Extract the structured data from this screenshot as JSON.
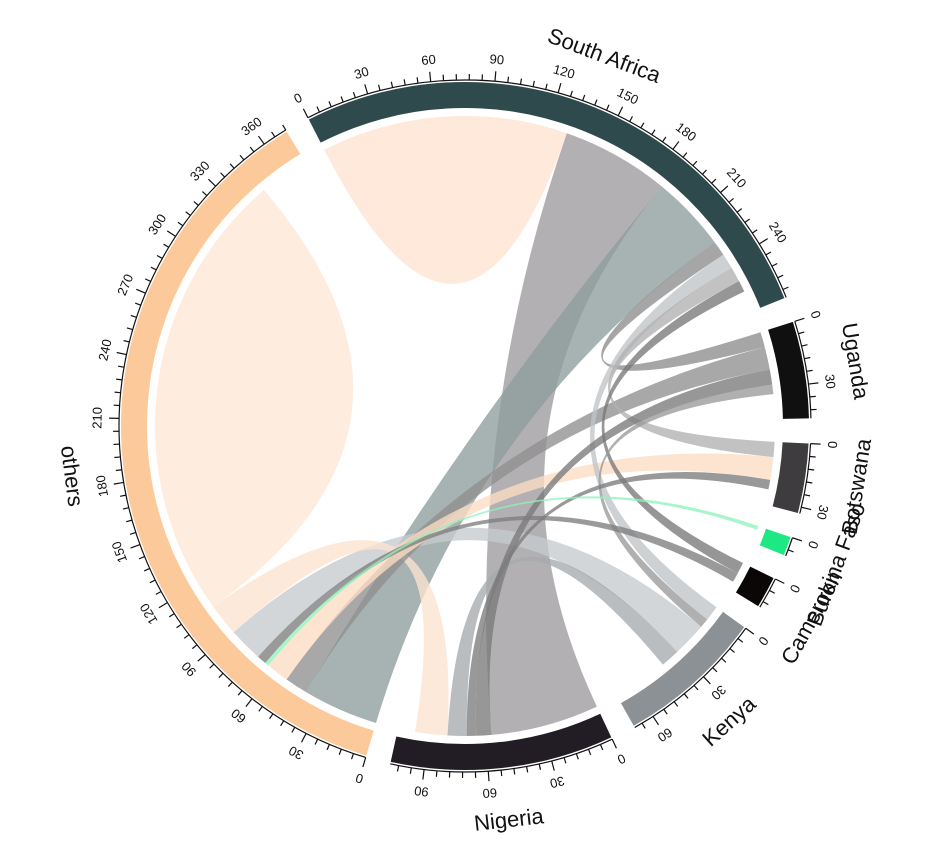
{
  "chart_data": {
    "type": "chord",
    "title": "",
    "sectors": [
      {
        "id": "SA",
        "label": "South Africa",
        "total": 268,
        "color": "#2f4a4d",
        "tick_step": 30
      },
      {
        "id": "UG",
        "label": "Uganda",
        "total": 46,
        "color": "#101010",
        "tick_step": 30
      },
      {
        "id": "BW",
        "label": "Botswana",
        "total": 33,
        "color": "#3e3c3e",
        "tick_step": 30
      },
      {
        "id": "BF",
        "label": "Burkina Faso",
        "total": 9,
        "color": "#1ee884",
        "tick_step": 30
      },
      {
        "id": "CM",
        "label": "Cameroon",
        "total": 15,
        "color": "#0a0706",
        "tick_step": 30
      },
      {
        "id": "KE",
        "label": "Kenya",
        "total": 70,
        "color": "#8b9195",
        "tick_step": 30
      },
      {
        "id": "NG",
        "label": "Nigeria",
        "total": 106,
        "color": "#221c24",
        "tick_step": 30
      },
      {
        "id": "OT",
        "label": "others",
        "total": 372,
        "color": "#fcc99a",
        "tick_step": 30
      }
    ],
    "links": [
      {
        "from": "SA",
        "to": "SA",
        "value": 65,
        "color": "#fee3d0"
      },
      {
        "from": "SA",
        "to": "NG",
        "value": 57,
        "color": "#9e9a9d"
      },
      {
        "from": "SA",
        "to": "OT",
        "value": 40,
        "color": "#8e9c9d"
      },
      {
        "from": "SA",
        "to": "UG",
        "value": 8,
        "color": "#8d8d8d"
      },
      {
        "from": "SA",
        "to": "KE",
        "value": 8,
        "color": "#c0c4c8"
      },
      {
        "from": "SA",
        "to": "BW",
        "value": 8,
        "color": "#b2b1b2"
      },
      {
        "from": "SA",
        "to": "CM",
        "value": 6,
        "color": "#787878"
      },
      {
        "from": "UG",
        "to": "OT",
        "value": 12,
        "color": "#8f8f8f"
      },
      {
        "from": "UG",
        "to": "NG",
        "value": 8,
        "color": "#7a7a7a"
      },
      {
        "from": "UG",
        "to": "KE",
        "value": 5,
        "color": "#9a9a9a"
      },
      {
        "from": "BW",
        "to": "OT",
        "value": 12,
        "color": "#fcdcc4"
      },
      {
        "from": "BW",
        "to": "NG",
        "value": 5,
        "color": "#7c7c7c"
      },
      {
        "from": "BF",
        "to": "OT",
        "value": 2,
        "color": "#8ef2bb"
      },
      {
        "from": "CM",
        "to": "OT",
        "value": 5,
        "color": "#7d7d7d"
      },
      {
        "from": "KE",
        "to": "OT",
        "value": 18,
        "color": "#c6cacd"
      },
      {
        "from": "KE",
        "to": "NG",
        "value": 10,
        "color": "#a7aaad"
      },
      {
        "from": "NG",
        "to": "OT",
        "value": 17,
        "color": "#fce3d0"
      },
      {
        "from": "OT",
        "to": "OT",
        "value": 120,
        "color": "#fee7d6"
      }
    ]
  }
}
